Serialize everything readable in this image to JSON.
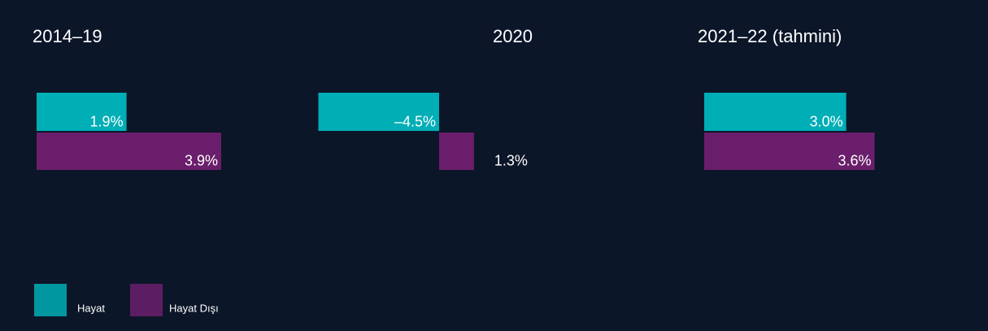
{
  "chart_data": [
    {
      "type": "bar",
      "orientation": "horizontal",
      "title": "2014–19",
      "xlim": [
        0,
        5
      ],
      "series": [
        {
          "name": "Hayat",
          "color": "#00aeb6",
          "values": [
            1.9
          ],
          "value_labels": [
            "1.9%"
          ]
        },
        {
          "name": "Hayat Dışı",
          "color": "#6b1e6c",
          "values": [
            3.9
          ],
          "value_labels": [
            "3.9%"
          ]
        }
      ]
    },
    {
      "type": "bar",
      "orientation": "horizontal",
      "title": "2020",
      "xlim": [
        -5,
        2
      ],
      "series": [
        {
          "name": "Hayat",
          "color": "#00aeb6",
          "values": [
            -4.5
          ],
          "value_labels": [
            "–4.5%"
          ]
        },
        {
          "name": "Hayat Dışı",
          "color": "#6b1e6c",
          "values": [
            1.3
          ],
          "value_labels": [
            "1.3%"
          ]
        }
      ]
    },
    {
      "type": "bar",
      "orientation": "horizontal",
      "title": "2021–22 (tahmini)",
      "xlim": [
        0,
        5
      ],
      "series": [
        {
          "name": "Hayat",
          "color": "#00aeb6",
          "values": [
            3.0
          ],
          "value_labels": [
            "3.0%"
          ]
        },
        {
          "name": "Hayat Dışı",
          "color": "#6b1e6c",
          "values": [
            3.6
          ],
          "value_labels": [
            "3.6%"
          ]
        }
      ]
    }
  ]
}
